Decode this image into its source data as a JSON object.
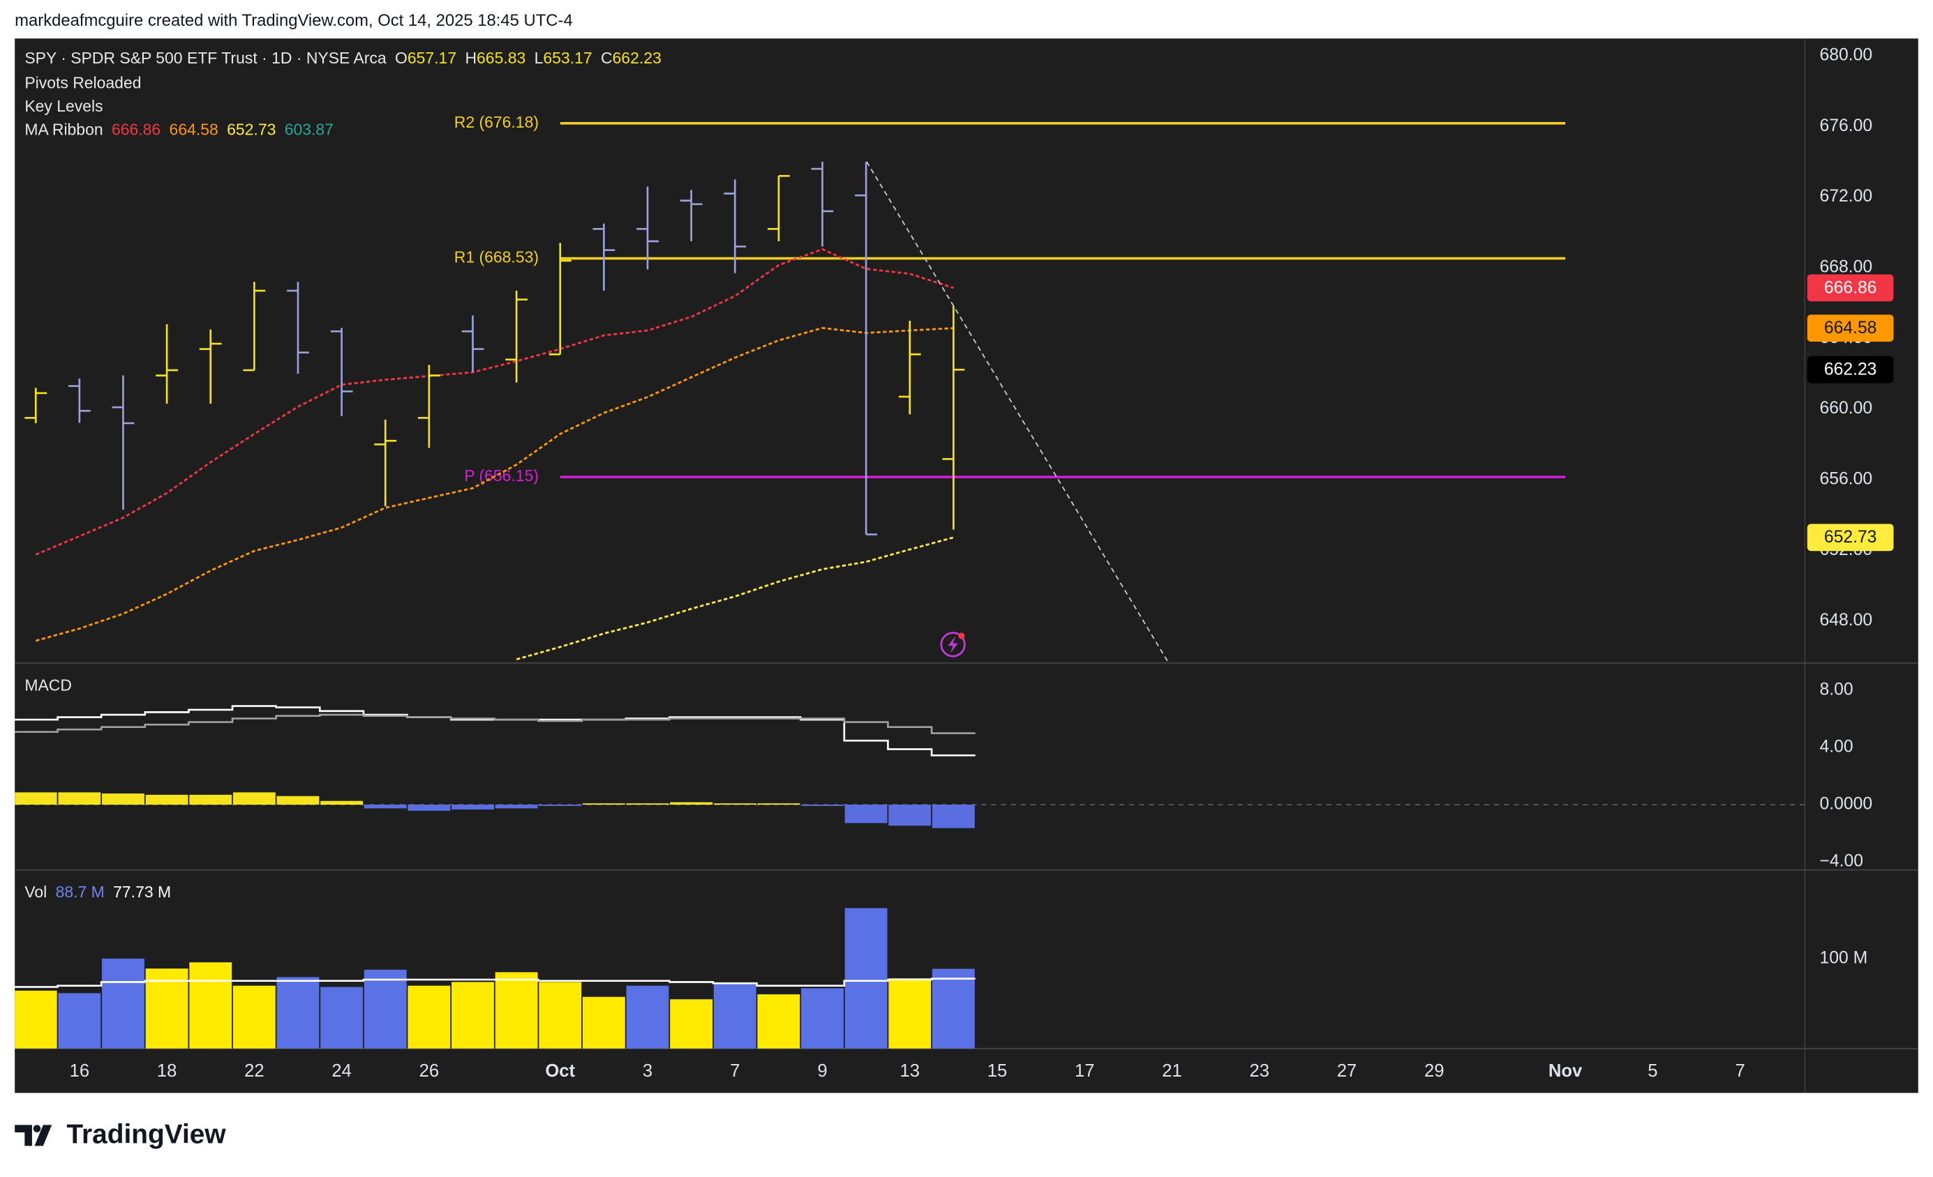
{
  "header": {
    "credit": "markdeafmcguire created with TradingView.com, Oct 14, 2025 18:45 UTC-4"
  },
  "footer": {
    "brand": "TradingView"
  },
  "chart_data": [
    {
      "type": "ohlc",
      "title": "SPY · SPDR S&P 500 ETF Trust · 1D · NYSE Arca",
      "ohlc_letters": [
        "O",
        "H",
        "L",
        "C"
      ],
      "indicators": [
        "Pivots Reloaded",
        "Key Levels"
      ],
      "ma_label": "MA Ribbon",
      "categories": [
        null,
        "16",
        null,
        "18",
        null,
        "22",
        null,
        "24",
        null,
        "26",
        null,
        null,
        "Oct",
        null,
        "3",
        null,
        "7",
        null,
        "9",
        null,
        "13",
        null,
        "15",
        null,
        "17",
        null,
        "21",
        null,
        "23",
        null,
        "27",
        null,
        "29",
        null,
        null,
        "Nov",
        null,
        "5",
        null,
        "7"
      ],
      "open": [
        659.5,
        661.3,
        660.1,
        661.9,
        663.4,
        662.2,
        666.7,
        664.4,
        658.0,
        659.5,
        664.4,
        662.8,
        663.1,
        670.2,
        670.2,
        671.8,
        672.2,
        670.2,
        673.6,
        672.1,
        660.7,
        657.17,
        null,
        null,
        null,
        null,
        null,
        null,
        null,
        null,
        null,
        null,
        null,
        null,
        null,
        null,
        null,
        null,
        null,
        null
      ],
      "high": [
        661.2,
        661.73,
        661.9,
        664.8,
        664.5,
        667.2,
        667.2,
        664.6,
        659.4,
        662.5,
        665.3,
        666.7,
        669.4,
        670.5,
        672.6,
        672.4,
        673.0,
        673.2,
        674.0,
        674.0,
        665.0,
        665.83,
        null,
        null,
        null,
        null,
        null,
        null,
        null,
        null,
        null,
        null,
        null,
        null,
        null,
        null,
        null,
        null,
        null,
        null
      ],
      "low": [
        659.2,
        659.22,
        654.3,
        660.3,
        660.3,
        662.2,
        662.0,
        659.6,
        654.5,
        657.8,
        662.1,
        661.5,
        663.1,
        666.7,
        667.9,
        669.5,
        667.7,
        669.5,
        669.2,
        652.9,
        659.7,
        653.17,
        null,
        null,
        null,
        null,
        null,
        null,
        null,
        null,
        null,
        null,
        null,
        null,
        null,
        null,
        null,
        null,
        null,
        null
      ],
      "close": [
        660.9,
        659.9,
        659.2,
        662.2,
        663.7,
        666.7,
        663.2,
        661.0,
        658.2,
        661.9,
        663.4,
        666.2,
        668.4,
        669.0,
        669.5,
        671.6,
        669.2,
        673.2,
        671.2,
        652.9,
        663.1,
        662.23,
        null,
        null,
        null,
        null,
        null,
        null,
        null,
        null,
        null,
        null,
        null,
        null,
        null,
        null,
        null,
        null,
        null,
        null
      ],
      "up_color": "#f5e31b",
      "down_color": "#9aa1dc",
      "ylim": [
        645.62,
        680.98
      ],
      "yticks": [
        {
          "value": 680,
          "label": "680.00"
        },
        {
          "value": 676,
          "label": "676.00"
        },
        {
          "value": 672,
          "label": "672.00"
        },
        {
          "value": 668,
          "label": "668.00"
        },
        {
          "value": 664,
          "label": "664.00"
        },
        {
          "value": 660,
          "label": "660.00"
        },
        {
          "value": 656,
          "label": "656.00"
        },
        {
          "value": 652,
          "label": "652.00"
        },
        {
          "value": 648,
          "label": "648.00"
        }
      ],
      "pivots": [
        {
          "label": "R2 (676.18)",
          "value": 676.18,
          "color": "#f2cf1d"
        },
        {
          "label": "R1 (668.53)",
          "value": 668.53,
          "color": "#f2cf1d"
        },
        {
          "label": "P (656.15)",
          "value": 656.15,
          "color": "#d51fd8"
        }
      ],
      "ma_series": [
        {
          "color": "#f23645",
          "last": 666.86,
          "values": [
            651.76,
            652.8,
            653.85,
            655.24,
            656.99,
            658.59,
            660.13,
            661.38,
            661.66,
            661.87,
            662.08,
            662.71,
            663.4,
            664.17,
            664.45,
            665.22,
            666.4,
            668.15,
            669.05,
            667.94,
            667.66,
            666.86,
            null,
            null,
            null,
            null,
            null,
            null,
            null,
            null,
            null,
            null,
            null,
            null,
            null,
            null,
            null,
            null,
            null,
            null
          ]
        },
        {
          "color": "#ff9800",
          "last": 664.58,
          "values": [
            646.88,
            647.57,
            648.41,
            649.53,
            650.85,
            651.97,
            652.59,
            653.29,
            654.41,
            654.97,
            655.52,
            656.85,
            658.59,
            659.78,
            660.68,
            661.8,
            662.91,
            663.89,
            664.59,
            664.31,
            664.45,
            664.58,
            null,
            null,
            null,
            null,
            null,
            null,
            null,
            null,
            null,
            null,
            null,
            null,
            null,
            null,
            null,
            null,
            null,
            null
          ]
        },
        {
          "color": "#ffeb3b",
          "last": 652.73,
          "values": [
            null,
            null,
            null,
            null,
            null,
            null,
            null,
            null,
            null,
            null,
            null,
            645.83,
            646.53,
            647.29,
            647.92,
            648.69,
            649.39,
            650.23,
            650.93,
            651.35,
            652.05,
            652.73,
            null,
            null,
            null,
            null,
            null,
            null,
            null,
            null,
            null,
            null,
            null,
            null,
            null,
            null,
            null,
            null,
            null,
            null
          ]
        },
        {
          "color": "#26a69a",
          "last": 603.87
        }
      ]
    },
    {
      "type": "macd",
      "title": "MACD",
      "ylim": [
        -4.57,
        9.91
      ],
      "yticks": [
        {
          "value": 8,
          "label": "8.00"
        },
        {
          "value": 4,
          "label": "4.00"
        },
        {
          "value": 0,
          "label": "0.0000"
        },
        {
          "value": -4,
          "label": "−4.00"
        }
      ],
      "series": [
        {
          "color": "#ffffff",
          "values": [
            5.95,
            6.12,
            6.29,
            6.47,
            6.64,
            6.9,
            6.81,
            6.55,
            6.29,
            6.12,
            5.95,
            5.95,
            5.95,
            5.95,
            6.03,
            6.12,
            6.12,
            6.12,
            5.95,
            4.48,
            3.88,
            3.45,
            null,
            null,
            null,
            null,
            null,
            null,
            null,
            null,
            null,
            null,
            null,
            null,
            null,
            null,
            null,
            null,
            null,
            null
          ]
        },
        {
          "color": "#a0a0a0",
          "values": [
            5.09,
            5.26,
            5.43,
            5.6,
            5.78,
            6.03,
            6.21,
            6.29,
            6.21,
            6.12,
            6.03,
            5.95,
            5.86,
            5.95,
            5.95,
            6.03,
            6.03,
            6.03,
            6.03,
            5.78,
            5.43,
            5.0,
            null,
            null,
            null,
            null,
            null,
            null,
            null,
            null,
            null,
            null,
            null,
            null,
            null,
            null,
            null,
            null,
            null,
            null
          ]
        }
      ],
      "histogram": {
        "up_color": "#f5e31b",
        "down_color": "#5b6ee1",
        "values": [
          0.86,
          0.86,
          0.78,
          0.69,
          0.69,
          0.86,
          0.6,
          0.26,
          -0.26,
          -0.43,
          -0.34,
          -0.26,
          -0.09,
          0.09,
          0.09,
          0.17,
          0.09,
          0.09,
          -0.09,
          -1.29,
          -1.47,
          -1.64,
          null,
          null,
          null,
          null,
          null,
          null,
          null,
          null,
          null,
          null,
          null,
          null,
          null,
          null,
          null,
          null,
          null,
          null
        ]
      }
    },
    {
      "type": "volume",
      "title": "Vol",
      "ylim": [
        0,
        198.6
      ],
      "yticks": [
        {
          "value": 100,
          "label": "100 M"
        }
      ],
      "values": [
        64.4,
        61.6,
        100,
        89,
        95.9,
        69.9,
        79.5,
        68.5,
        87.7,
        69.9,
        74,
        84.9,
        74,
        57.5,
        69.9,
        54.8,
        72.6,
        60.3,
        67.1,
        156.2,
        78.1,
        88.7,
        null,
        null,
        null,
        null,
        null,
        null,
        null,
        null,
        null,
        null,
        null,
        null,
        null,
        null,
        null,
        null,
        null,
        null
      ],
      "colors": [
        "#ffea00",
        "#5a72e6",
        "#5a72e6",
        "#ffea00",
        "#ffea00",
        "#ffea00",
        "#5a72e6",
        "#5a72e6",
        "#5a72e6",
        "#ffea00",
        "#ffea00",
        "#ffea00",
        "#ffea00",
        "#ffea00",
        "#5a72e6",
        "#ffea00",
        "#5a72e6",
        "#ffea00",
        "#5a72e6",
        "#5a72e6",
        "#ffea00",
        "#5a72e6",
        null,
        null,
        null,
        null,
        null,
        null,
        null,
        null,
        null,
        null,
        null,
        null,
        null,
        null,
        null,
        null,
        null,
        null
      ],
      "ma": {
        "color": "#ffffff",
        "values": [
          68.5,
          69.9,
          74,
          75.3,
          75.3,
          75.3,
          75.3,
          75.3,
          76.7,
          76.7,
          76.7,
          76.7,
          75.3,
          75.3,
          75.3,
          74,
          72.6,
          69.9,
          69.9,
          75.3,
          76.7,
          77.73,
          null,
          null,
          null,
          null,
          null,
          null,
          null,
          null,
          null,
          null,
          null,
          null,
          null,
          null,
          null,
          null,
          null,
          null
        ]
      },
      "legend_labels": [
        "88.7 M",
        "77.73 M"
      ],
      "legend_colors": [
        "#6f84f0",
        "#ffffff"
      ]
    }
  ]
}
